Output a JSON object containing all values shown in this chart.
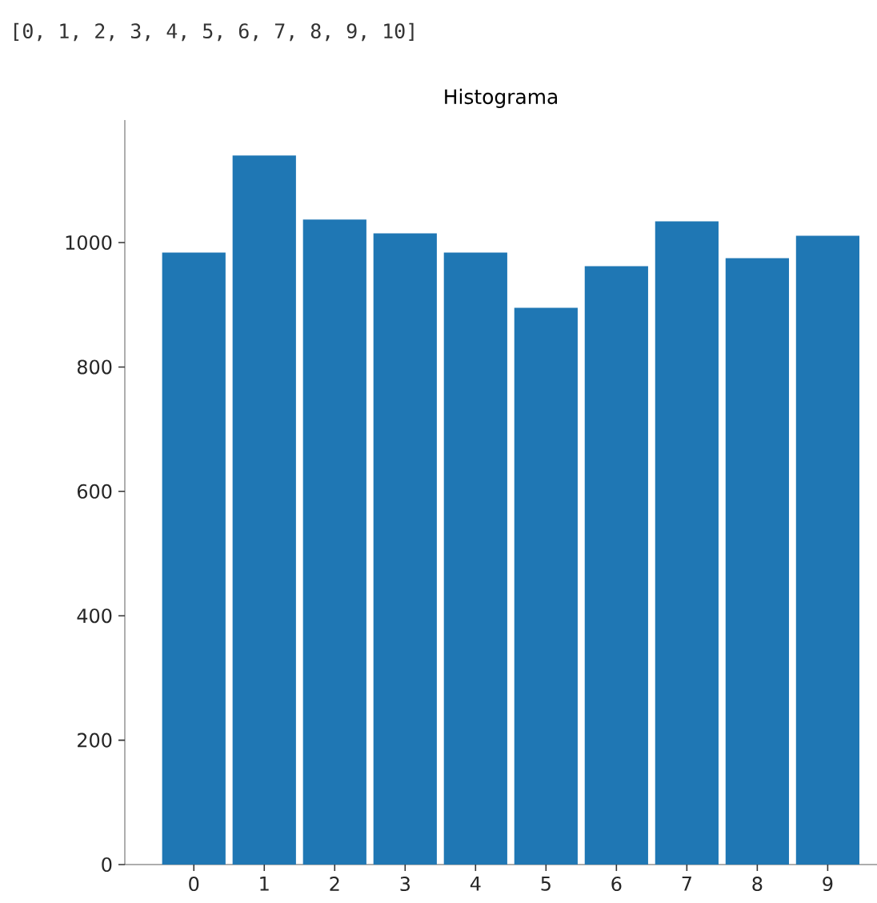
{
  "chart_data": {
    "type": "histogram",
    "title": "Histograma",
    "annotations": [
      "[0, 1, 2, 3, 4, 5, 6, 7, 8, 9, 10]"
    ],
    "bins": [
      -0.5,
      0.5,
      1.5,
      2.5,
      3.5,
      4.5,
      5.5,
      6.5,
      7.5,
      8.5,
      9.5
    ],
    "values": [
      984,
      1140,
      1037,
      1015,
      984,
      895,
      962,
      1034,
      975,
      1011
    ],
    "color": "#1f77b4",
    "xlim": [
      -0.98,
      9.7
    ],
    "ylim": [
      0,
      1197
    ],
    "xticks": [
      0,
      1,
      2,
      3,
      4,
      5,
      6,
      7,
      8,
      9
    ],
    "yticks": [
      0,
      200,
      400,
      600,
      800,
      1000
    ]
  }
}
